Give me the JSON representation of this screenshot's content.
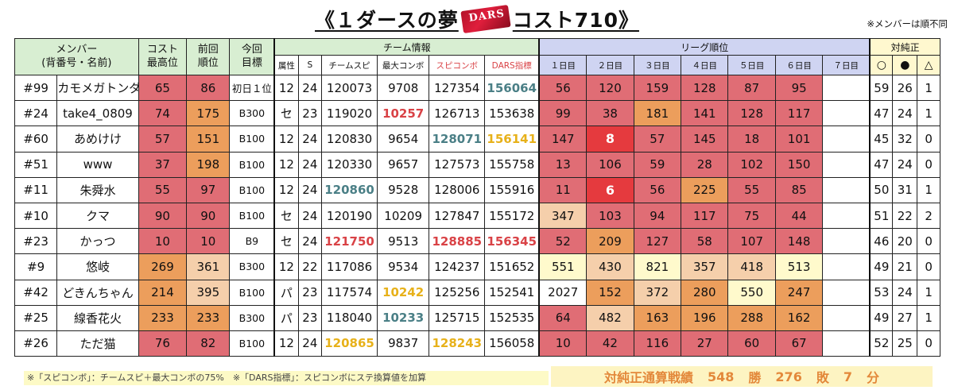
{
  "title": {
    "left": "《１ダースの夢",
    "logo": "DARS",
    "right": "コスト710》"
  },
  "note_top": "※メンバーは順不同",
  "headers": {
    "member": "メンバー",
    "member_sub": "(背番号・名前)",
    "cost": "コスト",
    "cost_sub": "最高位",
    "prev": "前回",
    "prev_sub": "順位",
    "goal": "今回",
    "goal_sub": "目標",
    "team": "チーム情報",
    "attr": "属性",
    "s": "S",
    "teamspi": "チームスピ",
    "maxcombo": "最大コンボ",
    "spicombo": "スピコンボ",
    "dars": "DARS指標",
    "league": "リーグ順位",
    "days": [
      "１日目",
      "２日目",
      "３日目",
      "４日目",
      "５日目",
      "６日目",
      "７日目"
    ],
    "record": "対純正",
    "win": "○",
    "lose": "●",
    "draw": "△"
  },
  "colors": {
    "high": "#e06d75",
    "mid": "#ec9e5c",
    "light": "#f5cfab",
    "pale": "#fffacc",
    "blank": "#ffffff"
  },
  "rows": [
    {
      "num": "#99",
      "name": "カモメガトンダ",
      "cost": "65",
      "cost_c": "high",
      "prev": "86",
      "prev_c": "high",
      "goal": "初日１位",
      "attr": "12",
      "s": "24",
      "teamspi": "120073",
      "teamspi_s": "",
      "maxcombo": "9708",
      "maxcombo_s": "",
      "spicombo": "127354",
      "spicombo_s": "",
      "dars": "156064",
      "dars_s": "blue",
      "days": [
        "56",
        "120",
        "159",
        "128",
        "87",
        "95",
        ""
      ],
      "days_c": [
        "high",
        "high",
        "high",
        "high",
        "high",
        "high",
        "blank"
      ],
      "win": "59",
      "lose": "26",
      "draw": "1"
    },
    {
      "num": "#24",
      "name": "take4_0809",
      "cost": "74",
      "cost_c": "high",
      "prev": "175",
      "prev_c": "mid",
      "goal": "B300",
      "attr": "セ",
      "s": "23",
      "teamspi": "119020",
      "teamspi_s": "",
      "maxcombo": "10257",
      "maxcombo_s": "red",
      "spicombo": "126713",
      "spicombo_s": "",
      "dars": "153638",
      "dars_s": "",
      "days": [
        "99",
        "38",
        "181",
        "141",
        "128",
        "117",
        ""
      ],
      "days_c": [
        "high",
        "high",
        "mid",
        "high",
        "high",
        "high",
        "blank"
      ],
      "win": "47",
      "lose": "24",
      "draw": "1"
    },
    {
      "num": "#60",
      "name": "あめけけ",
      "cost": "57",
      "cost_c": "high",
      "prev": "151",
      "prev_c": "mid",
      "goal": "B100",
      "attr": "12",
      "s": "24",
      "teamspi": "120830",
      "teamspi_s": "",
      "maxcombo": "9654",
      "maxcombo_s": "",
      "spicombo": "128071",
      "spicombo_s": "blue",
      "dars": "156141",
      "dars_s": "gold",
      "days": [
        "147",
        "8",
        "57",
        "145",
        "18",
        "101",
        ""
      ],
      "days_c": [
        "high",
        "red",
        "high",
        "high",
        "high",
        "high",
        "blank"
      ],
      "win": "45",
      "lose": "32",
      "draw": "0"
    },
    {
      "num": "#51",
      "name": "www",
      "cost": "37",
      "cost_c": "high",
      "prev": "198",
      "prev_c": "mid",
      "goal": "B100",
      "attr": "12",
      "s": "24",
      "teamspi": "120330",
      "teamspi_s": "",
      "maxcombo": "9657",
      "maxcombo_s": "",
      "spicombo": "127573",
      "spicombo_s": "",
      "dars": "155758",
      "dars_s": "",
      "days": [
        "13",
        "106",
        "59",
        "28",
        "102",
        "150",
        ""
      ],
      "days_c": [
        "high",
        "high",
        "high",
        "high",
        "high",
        "high",
        "blank"
      ],
      "win": "47",
      "lose": "24",
      "draw": "0"
    },
    {
      "num": "#11",
      "name": "朱舜水",
      "cost": "55",
      "cost_c": "high",
      "prev": "97",
      "prev_c": "high",
      "goal": "B100",
      "attr": "12",
      "s": "24",
      "teamspi": "120860",
      "teamspi_s": "blue",
      "maxcombo": "9528",
      "maxcombo_s": "",
      "spicombo": "128006",
      "spicombo_s": "",
      "dars": "155916",
      "dars_s": "",
      "days": [
        "11",
        "6",
        "56",
        "225",
        "55",
        "85",
        ""
      ],
      "days_c": [
        "high",
        "red",
        "high",
        "mid",
        "high",
        "high",
        "blank"
      ],
      "win": "50",
      "lose": "31",
      "draw": "1"
    },
    {
      "num": "#10",
      "name": "クマ",
      "cost": "90",
      "cost_c": "high",
      "prev": "90",
      "prev_c": "high",
      "goal": "B100",
      "attr": "セ",
      "s": "24",
      "teamspi": "120190",
      "teamspi_s": "",
      "maxcombo": "10209",
      "maxcombo_s": "",
      "spicombo": "127847",
      "spicombo_s": "",
      "dars": "155172",
      "dars_s": "",
      "days": [
        "347",
        "103",
        "94",
        "117",
        "75",
        "44",
        ""
      ],
      "days_c": [
        "light",
        "high",
        "high",
        "high",
        "high",
        "high",
        "blank"
      ],
      "win": "51",
      "lose": "22",
      "draw": "2"
    },
    {
      "num": "#23",
      "name": "かっつ",
      "cost": "10",
      "cost_c": "high",
      "prev": "10",
      "prev_c": "high",
      "goal": "B9",
      "attr": "セ",
      "s": "24",
      "teamspi": "121750",
      "teamspi_s": "red",
      "maxcombo": "9513",
      "maxcombo_s": "",
      "spicombo": "128885",
      "spicombo_s": "red",
      "dars": "156345",
      "dars_s": "red",
      "days": [
        "52",
        "209",
        "127",
        "58",
        "107",
        "148",
        ""
      ],
      "days_c": [
        "high",
        "mid",
        "high",
        "high",
        "high",
        "high",
        "blank"
      ],
      "win": "46",
      "lose": "20",
      "draw": "0"
    },
    {
      "num": "#9",
      "name": "悠岐",
      "cost": "269",
      "cost_c": "mid",
      "prev": "361",
      "prev_c": "light",
      "goal": "B300",
      "attr": "12",
      "s": "22",
      "teamspi": "117086",
      "teamspi_s": "",
      "maxcombo": "9534",
      "maxcombo_s": "",
      "spicombo": "124237",
      "spicombo_s": "",
      "dars": "151652",
      "dars_s": "",
      "days": [
        "551",
        "430",
        "821",
        "357",
        "418",
        "513",
        ""
      ],
      "days_c": [
        "pale",
        "light",
        "pale",
        "light",
        "light",
        "pale",
        "blank"
      ],
      "win": "49",
      "lose": "21",
      "draw": "0"
    },
    {
      "num": "#42",
      "name": "どきんちゃん",
      "cost": "214",
      "cost_c": "mid",
      "prev": "395",
      "prev_c": "light",
      "goal": "B100",
      "attr": "パ",
      "s": "23",
      "teamspi": "117574",
      "teamspi_s": "",
      "maxcombo": "10242",
      "maxcombo_s": "gold",
      "spicombo": "125256",
      "spicombo_s": "",
      "dars": "152541",
      "dars_s": "",
      "days": [
        "2027",
        "152",
        "372",
        "280",
        "550",
        "247",
        ""
      ],
      "days_c": [
        "blank",
        "mid",
        "light",
        "mid",
        "pale",
        "mid",
        "blank"
      ],
      "win": "53",
      "lose": "24",
      "draw": "1"
    },
    {
      "num": "#25",
      "name": "線香花火",
      "cost": "233",
      "cost_c": "mid",
      "prev": "233",
      "prev_c": "mid",
      "goal": "B300",
      "attr": "パ",
      "s": "23",
      "teamspi": "118040",
      "teamspi_s": "",
      "maxcombo": "10233",
      "maxcombo_s": "blue",
      "spicombo": "125715",
      "spicombo_s": "",
      "dars": "152535",
      "dars_s": "",
      "days": [
        "64",
        "482",
        "163",
        "196",
        "288",
        "162",
        ""
      ],
      "days_c": [
        "high",
        "light",
        "mid",
        "mid",
        "mid",
        "mid",
        "blank"
      ],
      "win": "49",
      "lose": "27",
      "draw": "1"
    },
    {
      "num": "#26",
      "name": "ただ猫",
      "cost": "76",
      "cost_c": "high",
      "prev": "82",
      "prev_c": "high",
      "goal": "B100",
      "attr": "12",
      "s": "24",
      "teamspi": "120865",
      "teamspi_s": "gold",
      "maxcombo": "9837",
      "maxcombo_s": "",
      "spicombo": "128243",
      "spicombo_s": "gold",
      "dars": "156058",
      "dars_s": "",
      "days": [
        "10",
        "42",
        "116",
        "27",
        "60",
        "67",
        ""
      ],
      "days_c": [
        "high",
        "high",
        "high",
        "high",
        "high",
        "high",
        "blank"
      ],
      "win": "52",
      "lose": "25",
      "draw": "0"
    }
  ],
  "footer": {
    "note": "※「スピコンボ」：チームスピ＋最大コンボの75%　※「DARS指標」：スピコンボにステ換算値を加算",
    "summary": {
      "label": "対純正通算戦績",
      "win": "548",
      "win_unit": "勝",
      "lose": "276",
      "lose_unit": "敗",
      "draw": "7",
      "draw_unit": "分"
    }
  }
}
